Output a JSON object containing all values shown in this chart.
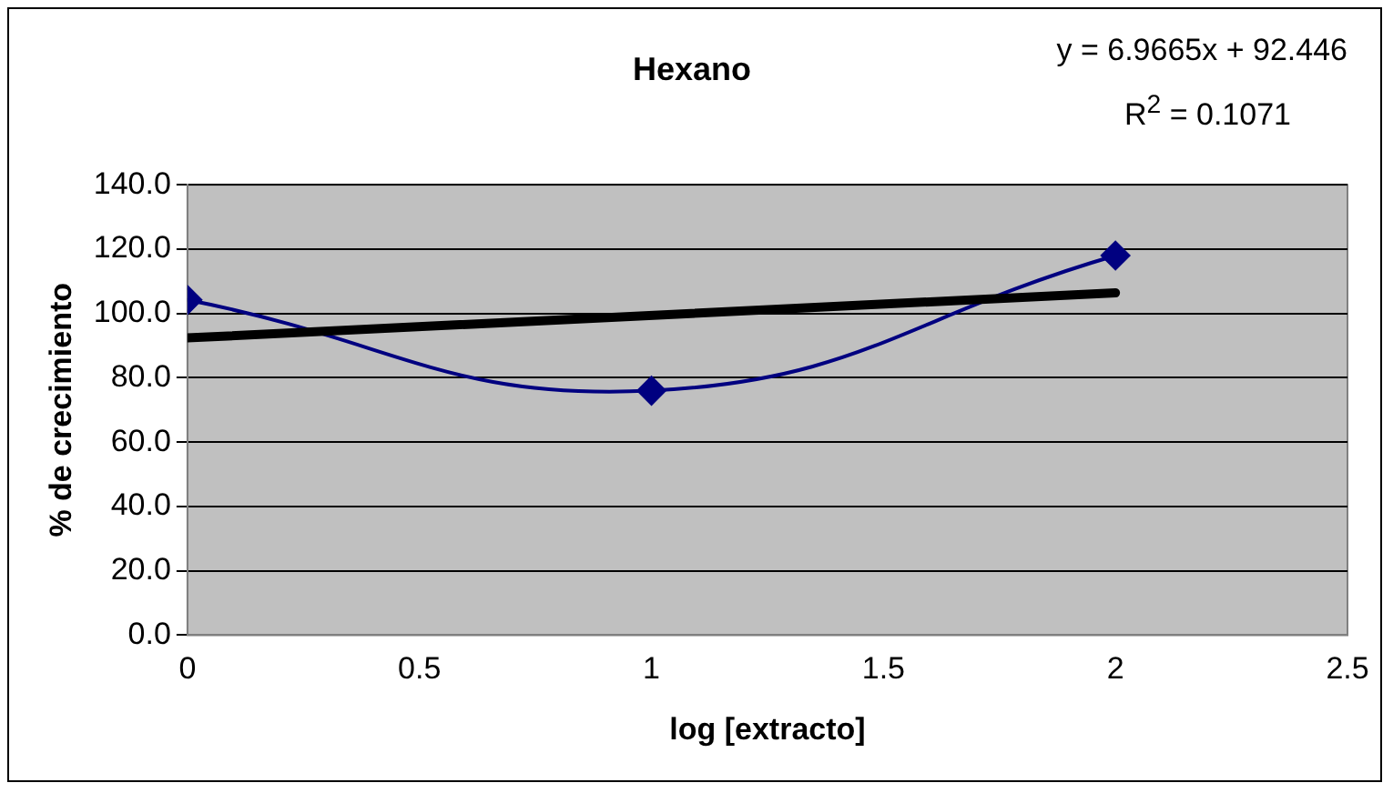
{
  "chart_data": {
    "type": "line",
    "title": "Hexano",
    "xlabel": "log [extracto]",
    "ylabel": "% de crecimiento",
    "x": [
      0,
      1,
      2
    ],
    "series": [
      {
        "color": "#000080",
        "values": [
          104.2,
          76.0,
          118.0
        ],
        "marker": "diamond"
      },
      {
        "type": "line",
        "color": "#000000",
        "x": [
          0,
          2
        ],
        "values": [
          92.4,
          106.4
        ],
        "marker": "none"
      }
    ],
    "xlim": [
      0,
      2.5
    ],
    "xticks": [
      0,
      0.5,
      1,
      1.5,
      2,
      2.5
    ],
    "ylim": [
      0,
      140
    ],
    "yticks": [
      {
        "value": 0,
        "label": "0.0"
      },
      {
        "value": 20,
        "label": "20.0"
      },
      {
        "value": 40,
        "label": "40.0"
      },
      {
        "value": 60,
        "label": "60.0"
      },
      {
        "value": 80,
        "label": "80.0"
      },
      {
        "value": 100,
        "label": "100.0"
      },
      {
        "value": 120,
        "label": "120.0"
      },
      {
        "value": 140,
        "label": "140.0"
      }
    ],
    "grid": "y",
    "legend": false,
    "annotations": [
      "y = 6.9665x + 92.446",
      "R$^{2}$ = 0.1071"
    ]
  }
}
